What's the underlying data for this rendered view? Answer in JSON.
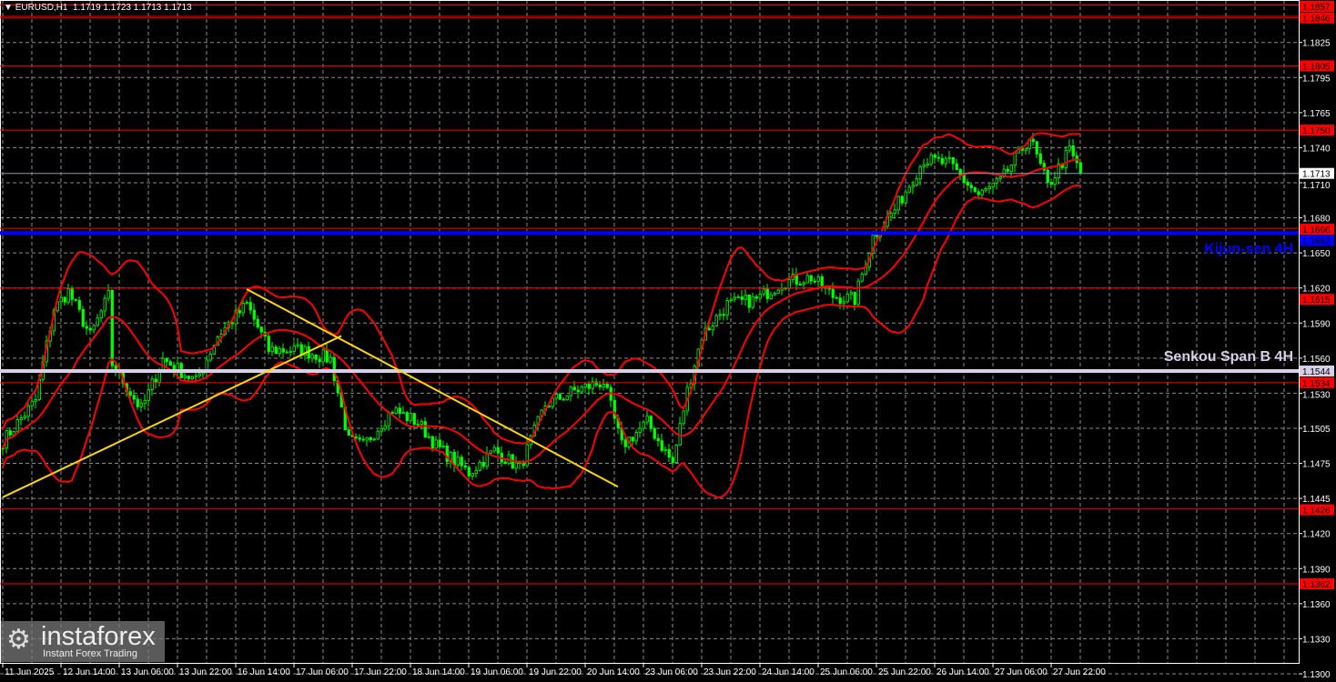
{
  "header": {
    "symbol": "EURUSD,H1",
    "ohlc": "1.1719 1.1723 1.1713 1.1713"
  },
  "logo": {
    "name": "instaforex",
    "tagline": "Instant Forex Trading"
  },
  "chart_data": {
    "type": "candlestick",
    "symbol": "EURUSD",
    "timeframe": "H1",
    "ylim": [
      1.13,
      1.186
    ],
    "y_ticks": [
      "1.1825",
      "1.1795",
      "1.1765",
      "1.1740",
      "1.1710",
      "1.1680",
      "1.1650",
      "1.1620",
      "1.1590",
      "1.1560",
      "1.1530",
      "1.1505",
      "1.1475",
      "1.1445",
      "1.1420",
      "1.1390",
      "1.1360",
      "1.1330",
      "1.1300"
    ],
    "x_ticks": [
      "11 Jun 2025",
      "12 Jun 14:00",
      "13 Jun 06:00",
      "13 Jun 22:00",
      "16 Jun 14:00",
      "17 Jun 06:00",
      "17 Jun 22:00",
      "18 Jun 14:00",
      "19 Jun 06:00",
      "19 Jun 22:00",
      "20 Jun 14:00",
      "23 Jun 06:00",
      "23 Jun 22:00",
      "24 Jun 14:00",
      "25 Jun 06:00",
      "25 Jun 22:00",
      "26 Jun 14:00",
      "27 Jun 06:00",
      "27 Jun 22:00"
    ],
    "bars_per_x_tick": 16,
    "price_path": [
      [
        0,
        1.1484
      ],
      [
        9,
        1.1519
      ],
      [
        14,
        1.1597
      ],
      [
        18,
        1.1612
      ],
      [
        24,
        1.1574
      ],
      [
        29,
        1.1608
      ],
      [
        30,
        1.155
      ],
      [
        38,
        1.1511
      ],
      [
        44,
        1.1554
      ],
      [
        53,
        1.1535
      ],
      [
        59,
        1.1574
      ],
      [
        67,
        1.1601
      ],
      [
        73,
        1.1562
      ],
      [
        82,
        1.1562
      ],
      [
        90,
        1.1554
      ],
      [
        95,
        1.1484
      ],
      [
        99,
        1.148
      ],
      [
        107,
        1.1511
      ],
      [
        114,
        1.15
      ],
      [
        119,
        1.148
      ],
      [
        128,
        1.1457
      ],
      [
        135,
        1.1476
      ],
      [
        142,
        1.1461
      ],
      [
        149,
        1.1515
      ],
      [
        157,
        1.1527
      ],
      [
        165,
        1.1535
      ],
      [
        170,
        1.148
      ],
      [
        177,
        1.15
      ],
      [
        184,
        1.1465
      ],
      [
        188,
        1.1527
      ],
      [
        192,
        1.1574
      ],
      [
        199,
        1.1601
      ],
      [
        207,
        1.1605
      ],
      [
        214,
        1.162
      ],
      [
        222,
        1.1624
      ],
      [
        228,
        1.1608
      ],
      [
        234,
        1.1605
      ],
      [
        239,
        1.1659
      ],
      [
        245,
        1.1682
      ],
      [
        253,
        1.1725
      ],
      [
        260,
        1.1721
      ],
      [
        268,
        1.1694
      ],
      [
        274,
        1.1706
      ],
      [
        282,
        1.1744
      ],
      [
        287,
        1.1702
      ],
      [
        293,
        1.1733
      ],
      [
        296,
        1.1713
      ]
    ],
    "indicator": "Bollinger Bands (20)",
    "levels": [
      {
        "price": "1.1857",
        "color": "#ff0000"
      },
      {
        "price": "1.1846",
        "color": "#ff0000"
      },
      {
        "price": "1.1805",
        "color": "#ff0000"
      },
      {
        "price": "1.1750",
        "color": "#ff0000"
      },
      {
        "price": "1.1666",
        "color": "#ff0000"
      },
      {
        "price": "1.1615",
        "color": "#ff0000"
      },
      {
        "price": "1.1534",
        "color": "#ff0000"
      },
      {
        "price": "1.1426",
        "color": "#ff0000"
      },
      {
        "price": "1.1362",
        "color": "#ff0000"
      }
    ],
    "kijun": {
      "price": "1.1662",
      "label": "Kijun-sen 4H",
      "color": "#0000ff"
    },
    "senkou": {
      "price": "1.1544",
      "label": "Senkou Span B 4H",
      "color": "#d8d0e8"
    },
    "current_price": "1.1713",
    "trendlines": [
      {
        "from": [
          0,
          1.1436
        ],
        "to": [
          93,
          1.1574
        ],
        "color": "#ffd700"
      },
      {
        "from": [
          67,
          1.1614
        ],
        "to": [
          169,
          1.1445
        ],
        "color": "#ffd700"
      }
    ],
    "colors": {
      "candle": "#00ff00",
      "bands": "#ff0000",
      "grid": "#8a8a8a",
      "background": "#000000"
    }
  }
}
